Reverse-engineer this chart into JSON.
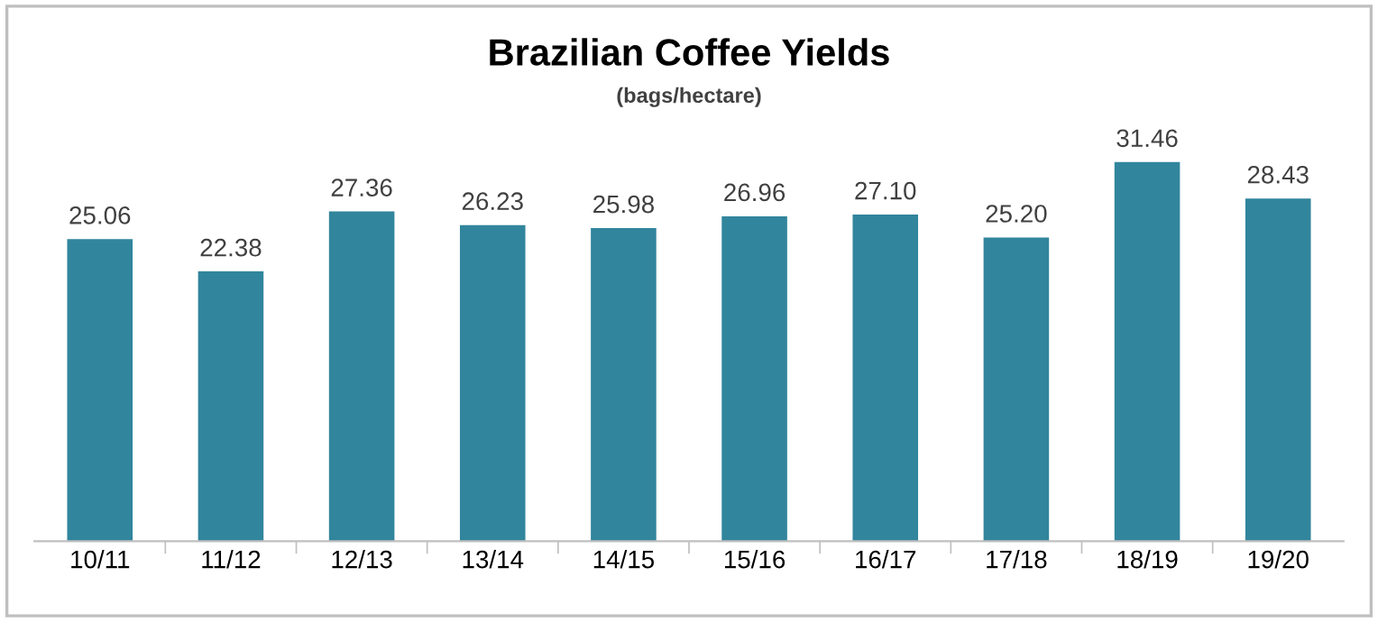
{
  "chart_data": {
    "type": "bar",
    "title": "Brazilian Coffee Yields",
    "subtitle": "(bags/hectare)",
    "categories": [
      "10/11",
      "11/12",
      "12/13",
      "13/14",
      "14/15",
      "15/16",
      "16/17",
      "17/18",
      "18/19",
      "19/20"
    ],
    "values": [
      25.06,
      22.38,
      27.36,
      26.23,
      25.98,
      26.96,
      27.1,
      25.2,
      31.46,
      28.43
    ],
    "value_labels": [
      "25.06",
      "22.38",
      "27.36",
      "26.23",
      "25.98",
      "26.96",
      "27.10",
      "25.20",
      "31.46",
      "28.43"
    ],
    "color": "#31859c",
    "grid": false,
    "legend": false,
    "tick_labels": "x"
  }
}
